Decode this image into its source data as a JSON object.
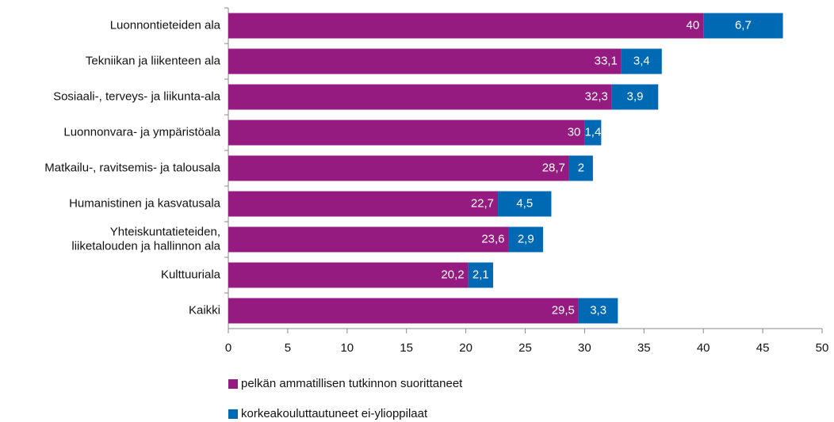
{
  "chart_data": {
    "type": "stacked-barh",
    "categories": [
      "Luonnontieteiden ala",
      "Tekniikan ja liikenteen ala",
      "Sosiaali-, terveys- ja liikunta-ala",
      "Luonnonvara- ja ympäristöala",
      "Matkailu-, ravitsemis- ja talousala",
      "Humanistinen ja kasvatusala",
      "Yhteiskuntatieteiden,\nliiketalouden ja hallinnon ala",
      "Kulttuuriala",
      "Kaikki"
    ],
    "series": [
      {
        "name": "pelkän ammatillisen tutkinnon suorittaneet",
        "color": "#951b81",
        "values": [
          40,
          33.1,
          32.3,
          30,
          28.7,
          22.7,
          23.6,
          20.2,
          29.5
        ],
        "value_labels": [
          "40",
          "33,1",
          "32,3",
          "30",
          "28,7",
          "22,7",
          "23,6",
          "20,2",
          "29,5"
        ]
      },
      {
        "name": "korkeakouluttautuneet ei-ylioppilaat",
        "color": "#0069b4",
        "values": [
          6.7,
          3.4,
          3.9,
          1.4,
          2,
          4.5,
          2.9,
          2.1,
          3.3
        ],
        "value_labels": [
          "6,7",
          "3,4",
          "3,9",
          "1,4",
          "2",
          "4,5",
          "2,9",
          "2,1",
          "3,3"
        ]
      }
    ],
    "xlim": [
      0,
      50
    ],
    "xticks": [
      0,
      5,
      10,
      15,
      20,
      25,
      30,
      35,
      40,
      45,
      50
    ]
  }
}
